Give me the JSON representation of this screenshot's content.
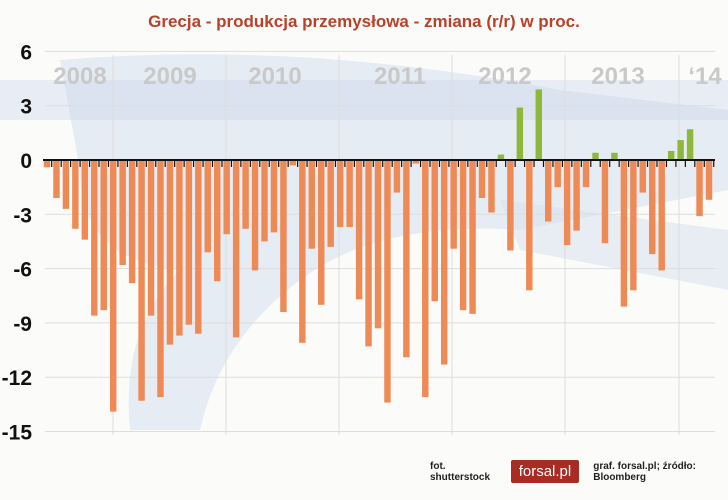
{
  "chart_data": {
    "type": "bar",
    "title": "Grecja - produkcja przemysłowa - zmiana (r/r) w proc.",
    "ylim": [
      -15,
      6
    ],
    "yticks": [
      6,
      3,
      0,
      -3,
      -6,
      -9,
      -12,
      -15
    ],
    "year_labels": [
      "2008",
      "2009",
      "2010",
      "2011",
      "2012",
      "2013",
      "‘14"
    ],
    "grid": true,
    "colors": {
      "positive": "#8db83a",
      "negative": "#ee8a55"
    },
    "values": [
      -0.4,
      -2.1,
      -2.7,
      -3.8,
      -4.4,
      -8.6,
      -8.3,
      -13.9,
      -5.8,
      -6.8,
      -13.3,
      -8.6,
      -13.1,
      -10.2,
      -9.7,
      -9.1,
      -9.6,
      -5.1,
      -6.7,
      -4.1,
      -9.8,
      -3.8,
      -6.1,
      -4.5,
      -4.0,
      -8.4,
      -0.3,
      -10.1,
      -4.9,
      -8.0,
      -4.8,
      -3.7,
      -3.7,
      -7.7,
      -10.3,
      -9.3,
      -13.4,
      -1.8,
      -10.9,
      -0.2,
      -13.1,
      -7.8,
      -11.3,
      -4.9,
      -8.3,
      -8.5,
      -2.1,
      -2.9,
      0.3,
      -5.0,
      2.9,
      -7.2,
      3.9,
      -3.4,
      -1.5,
      -4.7,
      -3.9,
      -1.5,
      0.4,
      -4.6,
      0.4,
      -8.1,
      -7.2,
      -1.8,
      -5.2,
      -6.1,
      0.5,
      1.1,
      1.7,
      -3.1,
      -2.2
    ]
  },
  "footer": {
    "photo_credit": "fot. shutterstock",
    "logo": "forsal.pl",
    "source": "graf. forsal.pl;  źródło: Bloomberg"
  }
}
